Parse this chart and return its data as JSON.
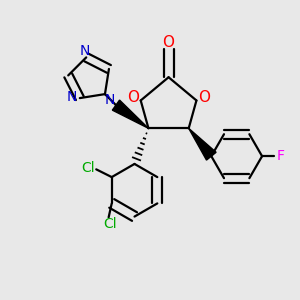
{
  "bg_color": "#e8e8e8",
  "atom_colors": {
    "O": "#ff0000",
    "N": "#0000cc",
    "Cl": "#00aa00",
    "F": "#ff00ff",
    "C": "#000000"
  },
  "bond_color": "#000000",
  "bond_width": 1.6,
  "fig_size": [
    3.0,
    3.0
  ],
  "dpi": 100
}
